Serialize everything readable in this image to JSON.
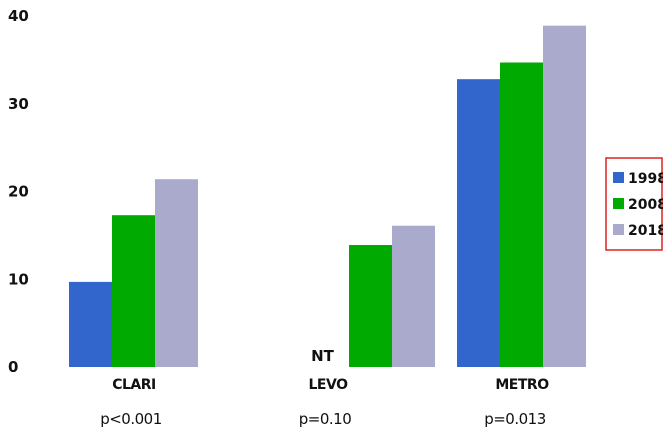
{
  "chart_data": {
    "type": "bar",
    "categories": [
      "CLARI",
      "LEVO",
      "METRO"
    ],
    "series": [
      {
        "name": "1998",
        "color": "#3366cc",
        "values": [
          9.7,
          null,
          32.8
        ]
      },
      {
        "name": "2008",
        "color": "#00aa00",
        "values": [
          17.3,
          13.9,
          34.7
        ]
      },
      {
        "name": "2018",
        "color": "#aaaacc",
        "values": [
          21.4,
          16.1,
          38.9
        ]
      }
    ],
    "ylim": [
      0,
      40
    ],
    "yticks": [
      0,
      10,
      20,
      30,
      40
    ],
    "annotations": [
      {
        "category": "LEVO",
        "series": "1998",
        "text": "NT"
      }
    ],
    "pvalues": [
      "p<0.001",
      "p=0.10",
      "p=0.013"
    ],
    "legend": {
      "position": "right",
      "border_color": "#dd2222"
    },
    "grid": false,
    "title": "",
    "xlabel": "",
    "ylabel": ""
  }
}
